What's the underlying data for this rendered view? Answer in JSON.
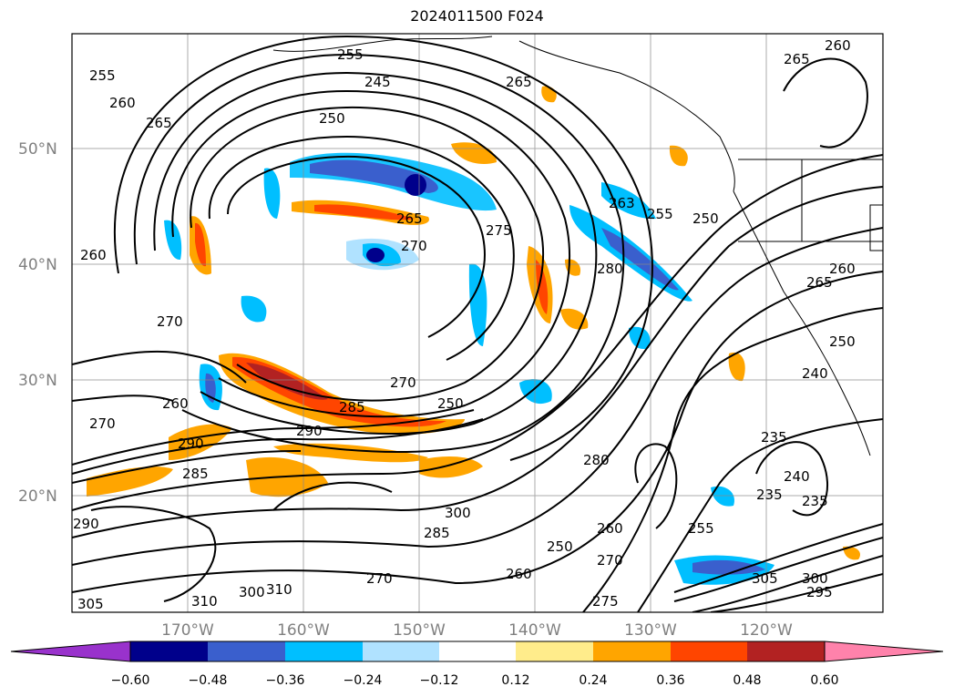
{
  "title": "2024011500 F024",
  "map": {
    "lat_labels": [
      "50°N",
      "40°N",
      "30°N",
      "20°N"
    ],
    "lon_labels": [
      "170°W",
      "160°W",
      "150°W",
      "140°W",
      "130°W",
      "120°W"
    ],
    "gridlines": true,
    "contour_labels": [
      "255",
      "260",
      "265",
      "245",
      "250",
      "255",
      "265",
      "260",
      "265",
      "250",
      "265",
      "270",
      "275",
      "280",
      "260",
      "263",
      "255",
      "250",
      "260",
      "265",
      "270",
      "250",
      "270",
      "260",
      "270",
      "290",
      "285",
      "280",
      "300",
      "285",
      "250",
      "260",
      "270",
      "275",
      "260",
      "255",
      "235",
      "240",
      "235",
      "240",
      "235",
      "305",
      "310",
      "300",
      "310",
      "290",
      "295",
      "285",
      "270",
      "300",
      "305",
      "290"
    ]
  },
  "colorbar": {
    "ticks": [
      "−0.60",
      "−0.48",
      "−0.36",
      "−0.24",
      "−0.12",
      "0.12",
      "0.24",
      "0.36",
      "0.48",
      "0.60"
    ],
    "colors": [
      "#9932cc",
      "#00008b",
      "#3a5fcd",
      "#00bfff",
      "#b0e2ff",
      "#ffffff",
      "#ffec8b",
      "#ffa500",
      "#ff4500",
      "#b22222",
      "#ff82ab"
    ]
  }
}
